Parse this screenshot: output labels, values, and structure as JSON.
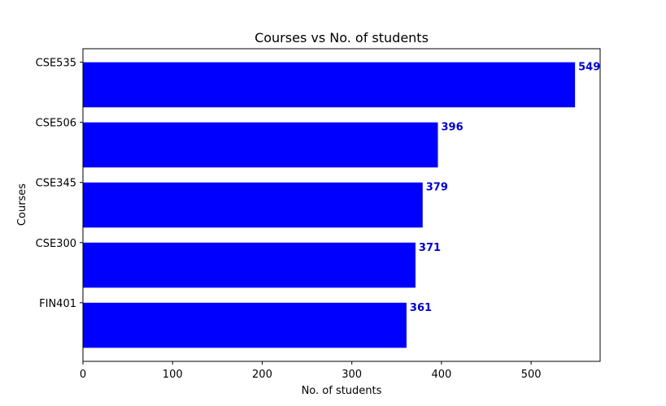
{
  "chart_data": {
    "type": "bar",
    "orientation": "horizontal",
    "title": "Courses vs No. of students",
    "xlabel": "No. of students",
    "ylabel": "Courses",
    "categories": [
      "FIN401",
      "CSE300",
      "CSE345",
      "CSE506",
      "CSE535"
    ],
    "values": [
      361,
      371,
      379,
      396,
      549
    ],
    "data_labels": [
      "361",
      "371",
      "379",
      "396",
      "549"
    ],
    "xlim": [
      0,
      577
    ],
    "xticks": [
      0,
      100,
      200,
      300,
      400,
      500
    ],
    "grid": false,
    "bar_color": "#0000ff",
    "label_color": "#0000cd"
  }
}
